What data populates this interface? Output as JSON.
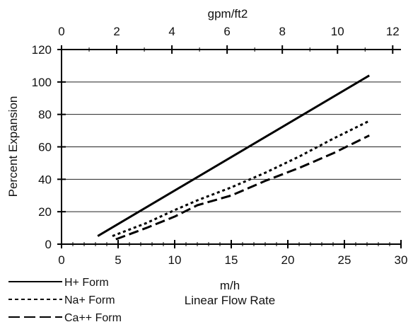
{
  "chart_data": {
    "type": "line",
    "title": "",
    "xlabel": "m/h",
    "xlabel_secondary": "Linear Flow Rate",
    "ylabel": "Percent Expansion",
    "top_axis_label": "gpm/ft2",
    "xlim": [
      0,
      30
    ],
    "ylim": [
      0,
      120
    ],
    "top_xlim": [
      0,
      12.3
    ],
    "x_ticks": [
      "0",
      "5",
      "10",
      "15",
      "20",
      "25",
      "30"
    ],
    "y_ticks": [
      "0",
      "20",
      "40",
      "60",
      "80",
      "100",
      "120"
    ],
    "top_ticks": [
      "0",
      "2",
      "4",
      "6",
      "8",
      "10",
      "12"
    ],
    "grid": "horizontal",
    "legend_position": "bottom-left",
    "series": [
      {
        "name": "H+ Form",
        "style": "solid",
        "x": [
          3.2,
          27.2
        ],
        "y": [
          5,
          104
        ]
      },
      {
        "name": "Na+ Form",
        "style": "dotted",
        "x": [
          4.5,
          7.5,
          10,
          12,
          15,
          18,
          21,
          24,
          27.2
        ],
        "y": [
          5,
          13,
          21,
          27,
          35,
          44,
          54,
          65,
          76
        ]
      },
      {
        "name": "Ca++ Form",
        "style": "dashed",
        "x": [
          4.8,
          7.5,
          10,
          12,
          15,
          18,
          21,
          24,
          27.2
        ],
        "y": [
          3,
          10,
          17,
          24,
          30,
          39,
          47,
          56,
          67
        ]
      }
    ]
  }
}
